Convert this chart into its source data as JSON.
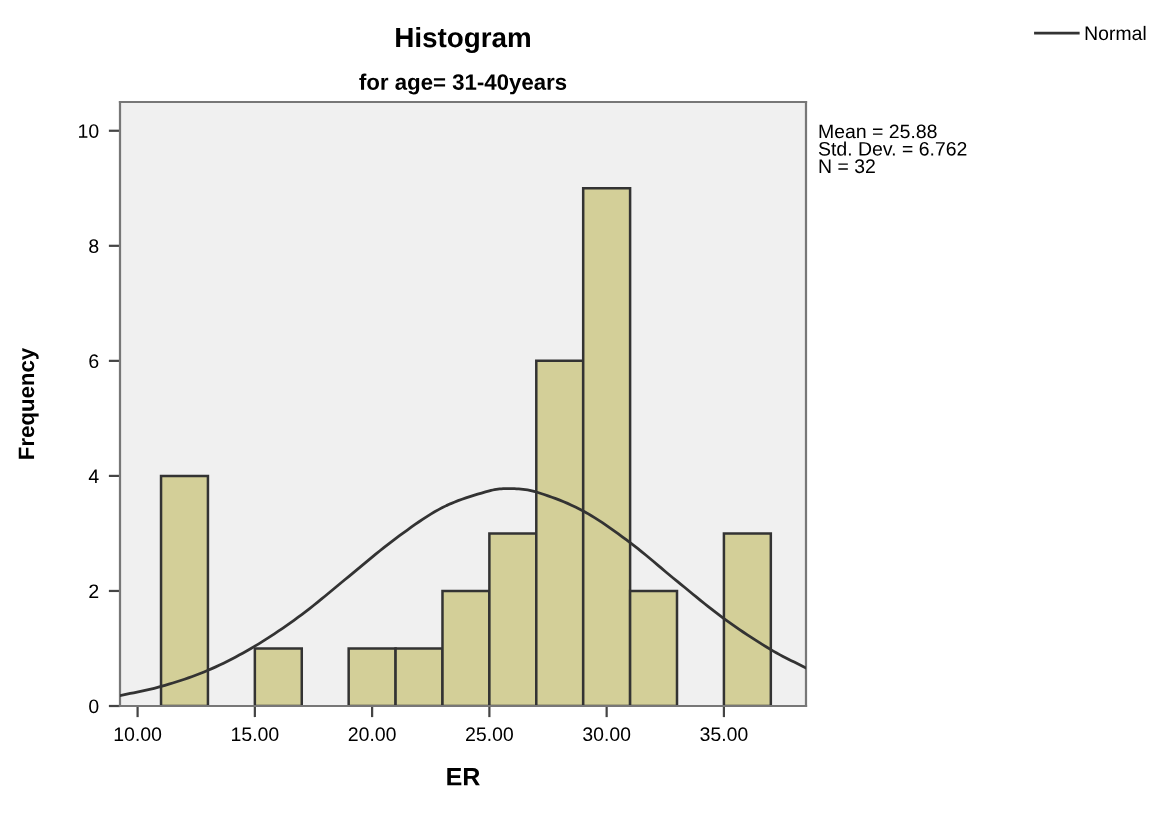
{
  "chart_data": {
    "type": "histogram",
    "title": "Histogram",
    "subtitle": "for age= 31-40years",
    "xlabel": "ER",
    "ylabel": "Frequency",
    "bins": [
      11,
      13,
      15,
      17,
      19,
      21,
      23,
      25,
      27,
      29,
      31,
      33,
      35,
      37
    ],
    "values": [
      4,
      0,
      1,
      0,
      1,
      1,
      2,
      3,
      6,
      9,
      2,
      0,
      3
    ],
    "color": "#d3cf98",
    "series": [
      {
        "type": "line",
        "name": "Normal",
        "color": "#333333",
        "x": [
          9.25,
          11,
          13,
          15,
          17,
          19,
          21,
          23,
          25,
          25.88,
          27,
          29,
          31,
          33,
          35,
          37,
          38.5
        ],
        "values": [
          0.18,
          0.34,
          0.62,
          1.04,
          1.59,
          2.25,
          2.91,
          3.45,
          3.74,
          3.78,
          3.72,
          3.39,
          2.84,
          2.17,
          1.52,
          0.98,
          0.66
        ]
      }
    ],
    "xlim": [
      9.25,
      38.5
    ],
    "ylim": [
      0,
      10.5
    ],
    "xticks": [
      {
        "value": 10,
        "label": "10.00"
      },
      {
        "value": 15,
        "label": "15.00"
      },
      {
        "value": 20,
        "label": "20.00"
      },
      {
        "value": 25,
        "label": "25.00"
      },
      {
        "value": 30,
        "label": "30.00"
      },
      {
        "value": 35,
        "label": "35.00"
      }
    ],
    "yticks": [
      0,
      2,
      4,
      6,
      8,
      10
    ],
    "annotations": [
      "Mean = 25.88\nStd. Dev. = 6.762\nN = 32"
    ],
    "legend": "top right",
    "grid": false
  }
}
